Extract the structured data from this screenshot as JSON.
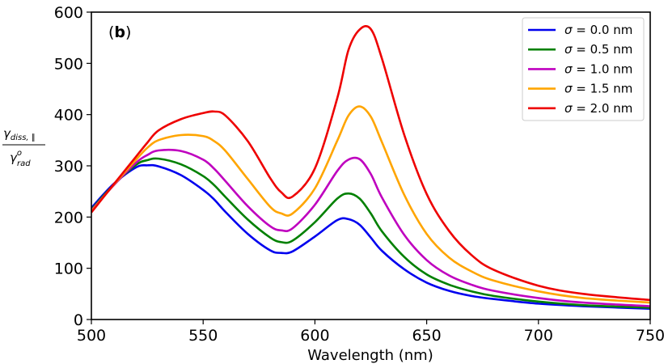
{
  "chart_data": {
    "type": "line",
    "panel_label_prefix": "(",
    "panel_label_letter": "b",
    "panel_label_suffix": ")",
    "xlabel": "Wavelength (nm)",
    "ylabel": {
      "numerator_base": "γ",
      "numerator_sub": "diss, ∥",
      "denominator_base": "γ",
      "denominator_sup": "o",
      "denominator_sub": "rad"
    },
    "xlim": [
      500,
      750
    ],
    "ylim": [
      0,
      600
    ],
    "xticks": [
      500,
      550,
      600,
      650,
      700,
      750
    ],
    "yticks": [
      0,
      100,
      200,
      300,
      400,
      500,
      600
    ],
    "legend_position": "top-right",
    "x": [
      500,
      510,
      520,
      525,
      530,
      540,
      550,
      555,
      560,
      570,
      580,
      585,
      590,
      600,
      610,
      615,
      620,
      625,
      630,
      640,
      650,
      660,
      670,
      680,
      700,
      720,
      750
    ],
    "series": [
      {
        "name": "σ = 0.0 nm",
        "legend_lhs": "σ",
        "legend_rhs": "= 0.0 nm",
        "color": "#0000ee",
        "values": [
          218,
          265,
          297,
          301,
          299,
          282,
          253,
          234,
          210,
          167,
          135,
          130,
          133,
          162,
          194,
          196,
          185,
          160,
          134,
          98,
          72,
          56,
          46,
          40,
          31,
          26,
          21
        ]
      },
      {
        "name": "σ = 0.5 nm",
        "legend_lhs": "σ",
        "legend_rhs": "= 0.5 nm",
        "color": "#008000",
        "values": [
          215,
          263,
          302,
          311,
          314,
          303,
          280,
          262,
          239,
          195,
          160,
          151,
          154,
          190,
          236,
          246,
          236,
          207,
          172,
          122,
          88,
          68,
          55,
          46,
          35,
          28,
          23
        ]
      },
      {
        "name": "σ = 1.0 nm",
        "legend_lhs": "σ",
        "legend_rhs": "= 1.0 nm",
        "color": "#bf00bf",
        "values": [
          213,
          262,
          306,
          321,
          330,
          329,
          312,
          294,
          270,
          221,
          182,
          174,
          178,
          224,
          290,
          312,
          313,
          284,
          238,
          165,
          116,
          86,
          68,
          56,
          42,
          33,
          26
        ]
      },
      {
        "name": "σ = 1.5 nm",
        "legend_lhs": "σ",
        "legend_rhs": "= 1.5 nm",
        "color": "#ffa500",
        "values": [
          211,
          263,
          312,
          335,
          350,
          360,
          358,
          348,
          329,
          274,
          220,
          207,
          207,
          256,
          349,
          398,
          416,
          396,
          346,
          243,
          167,
          121,
          94,
          76,
          55,
          42,
          33
        ]
      },
      {
        "name": "σ = 2.0 nm",
        "legend_lhs": "σ",
        "legend_rhs": "= 2.0 nm",
        "color": "#ee0000",
        "values": [
          209,
          264,
          318,
          345,
          369,
          391,
          403,
          406,
          398,
          348,
          276,
          248,
          240,
          295,
          432,
          526,
          566,
          567,
          509,
          360,
          245,
          173,
          126,
          97,
          66,
          50,
          38
        ]
      }
    ]
  }
}
